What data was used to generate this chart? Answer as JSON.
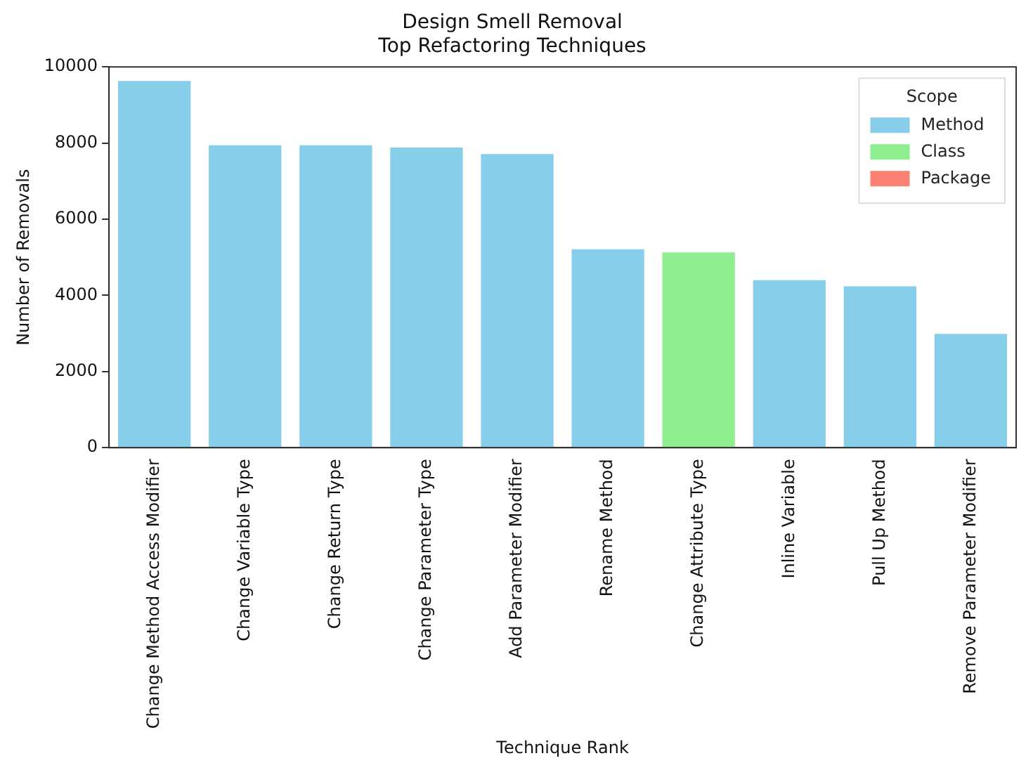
{
  "chart_data": {
    "type": "bar",
    "title": "Design Smell Removal\nTop Refactoring Techniques",
    "xlabel": "Technique Rank",
    "ylabel": "Number of Removals",
    "legend_title": "Scope",
    "categories": [
      "Change Method Access Modifier",
      "Change Variable Type",
      "Change Return Type",
      "Change Parameter Type",
      "Add Parameter Modifier",
      "Rename Method",
      "Change Attribute Type",
      "Inline Variable",
      "Pull Up Method",
      "Remove Parameter Modifier"
    ],
    "series": [
      {
        "name": "Method",
        "color": "#87ceeb",
        "values": [
          9630,
          7940,
          7940,
          7880,
          7710,
          5210,
          null,
          4400,
          4240,
          2990
        ]
      },
      {
        "name": "Class",
        "color": "#90ee90",
        "values": [
          null,
          null,
          null,
          null,
          null,
          null,
          5130,
          null,
          null,
          null
        ]
      },
      {
        "name": "Package",
        "color": "#fa8072",
        "values": [
          null,
          null,
          null,
          null,
          null,
          null,
          null,
          null,
          null,
          null
        ]
      }
    ],
    "stacked": true,
    "ylim": [
      0,
      10000
    ],
    "yticks": [
      0,
      2000,
      4000,
      6000,
      8000,
      10000
    ],
    "legend": "top right"
  }
}
